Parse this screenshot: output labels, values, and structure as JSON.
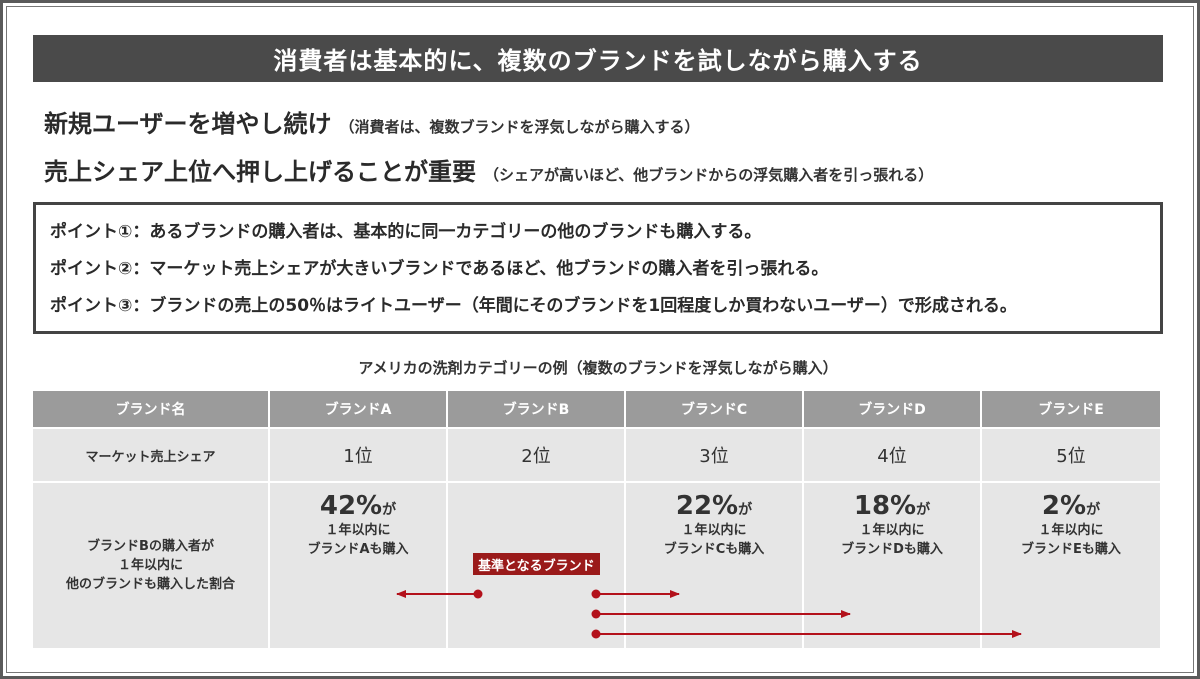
{
  "title": "消費者は基本的に、複数のブランドを試しながら購入する",
  "headline1": {
    "main": "新規ユーザーを増やし続け",
    "note": "（消費者は、複数ブランドを浮気しながら購入する）"
  },
  "headline2": {
    "main": "売上シェア上位へ押し上げることが重要",
    "note": "（シェアが高いほど、他ブランドからの浮気購入者を引っ張れる）"
  },
  "points": [
    "ポイント①：あるブランドの購入者は、基本的に同一カテゴリーの他のブランドも購入する。",
    "ポイント②：マーケット売上シェアが大きいブランドであるほど、他ブランドの購入者を引っ張れる。",
    "ポイント③：ブランドの売上の50％はライトユーザー（年間にそのブランドを1回程度しか買わないユーザー）で形成される。"
  ],
  "table": {
    "caption": "アメリカの洗剤カテゴリーの例（複数のブランドを浮気しながら購入）",
    "header": [
      "ブランド名",
      "ブランドA",
      "ブランドB",
      "ブランドC",
      "ブランドD",
      "ブランドE"
    ],
    "rank_label": "マーケット売上シェア",
    "ranks": [
      "1位",
      "2位",
      "3位",
      "4位",
      "5位"
    ],
    "share_label": [
      "ブランドBの購入者が",
      "１年以内に",
      "他のブランドも購入した割合"
    ],
    "shares": [
      {
        "pct": "42%",
        "ga": "が",
        "line1": "１年以内に",
        "line2": "ブランドAも購入"
      },
      {
        "pct": "22%",
        "ga": "が",
        "line1": "１年以内に",
        "line2": "ブランドCも購入"
      },
      {
        "pct": "18%",
        "ga": "が",
        "line1": "１年以内に",
        "line2": "ブランドDも購入"
      },
      {
        "pct": "2%",
        "ga": "が",
        "line1": "１年以内に",
        "line2": "ブランドEも購入"
      }
    ],
    "badge": "基準となるブランド"
  },
  "colors": {
    "title_bg": "#4a4a4a",
    "header_bg": "#9b9b9b",
    "row_bg": "#e6e6e6",
    "accent_red": "#b3111b"
  }
}
